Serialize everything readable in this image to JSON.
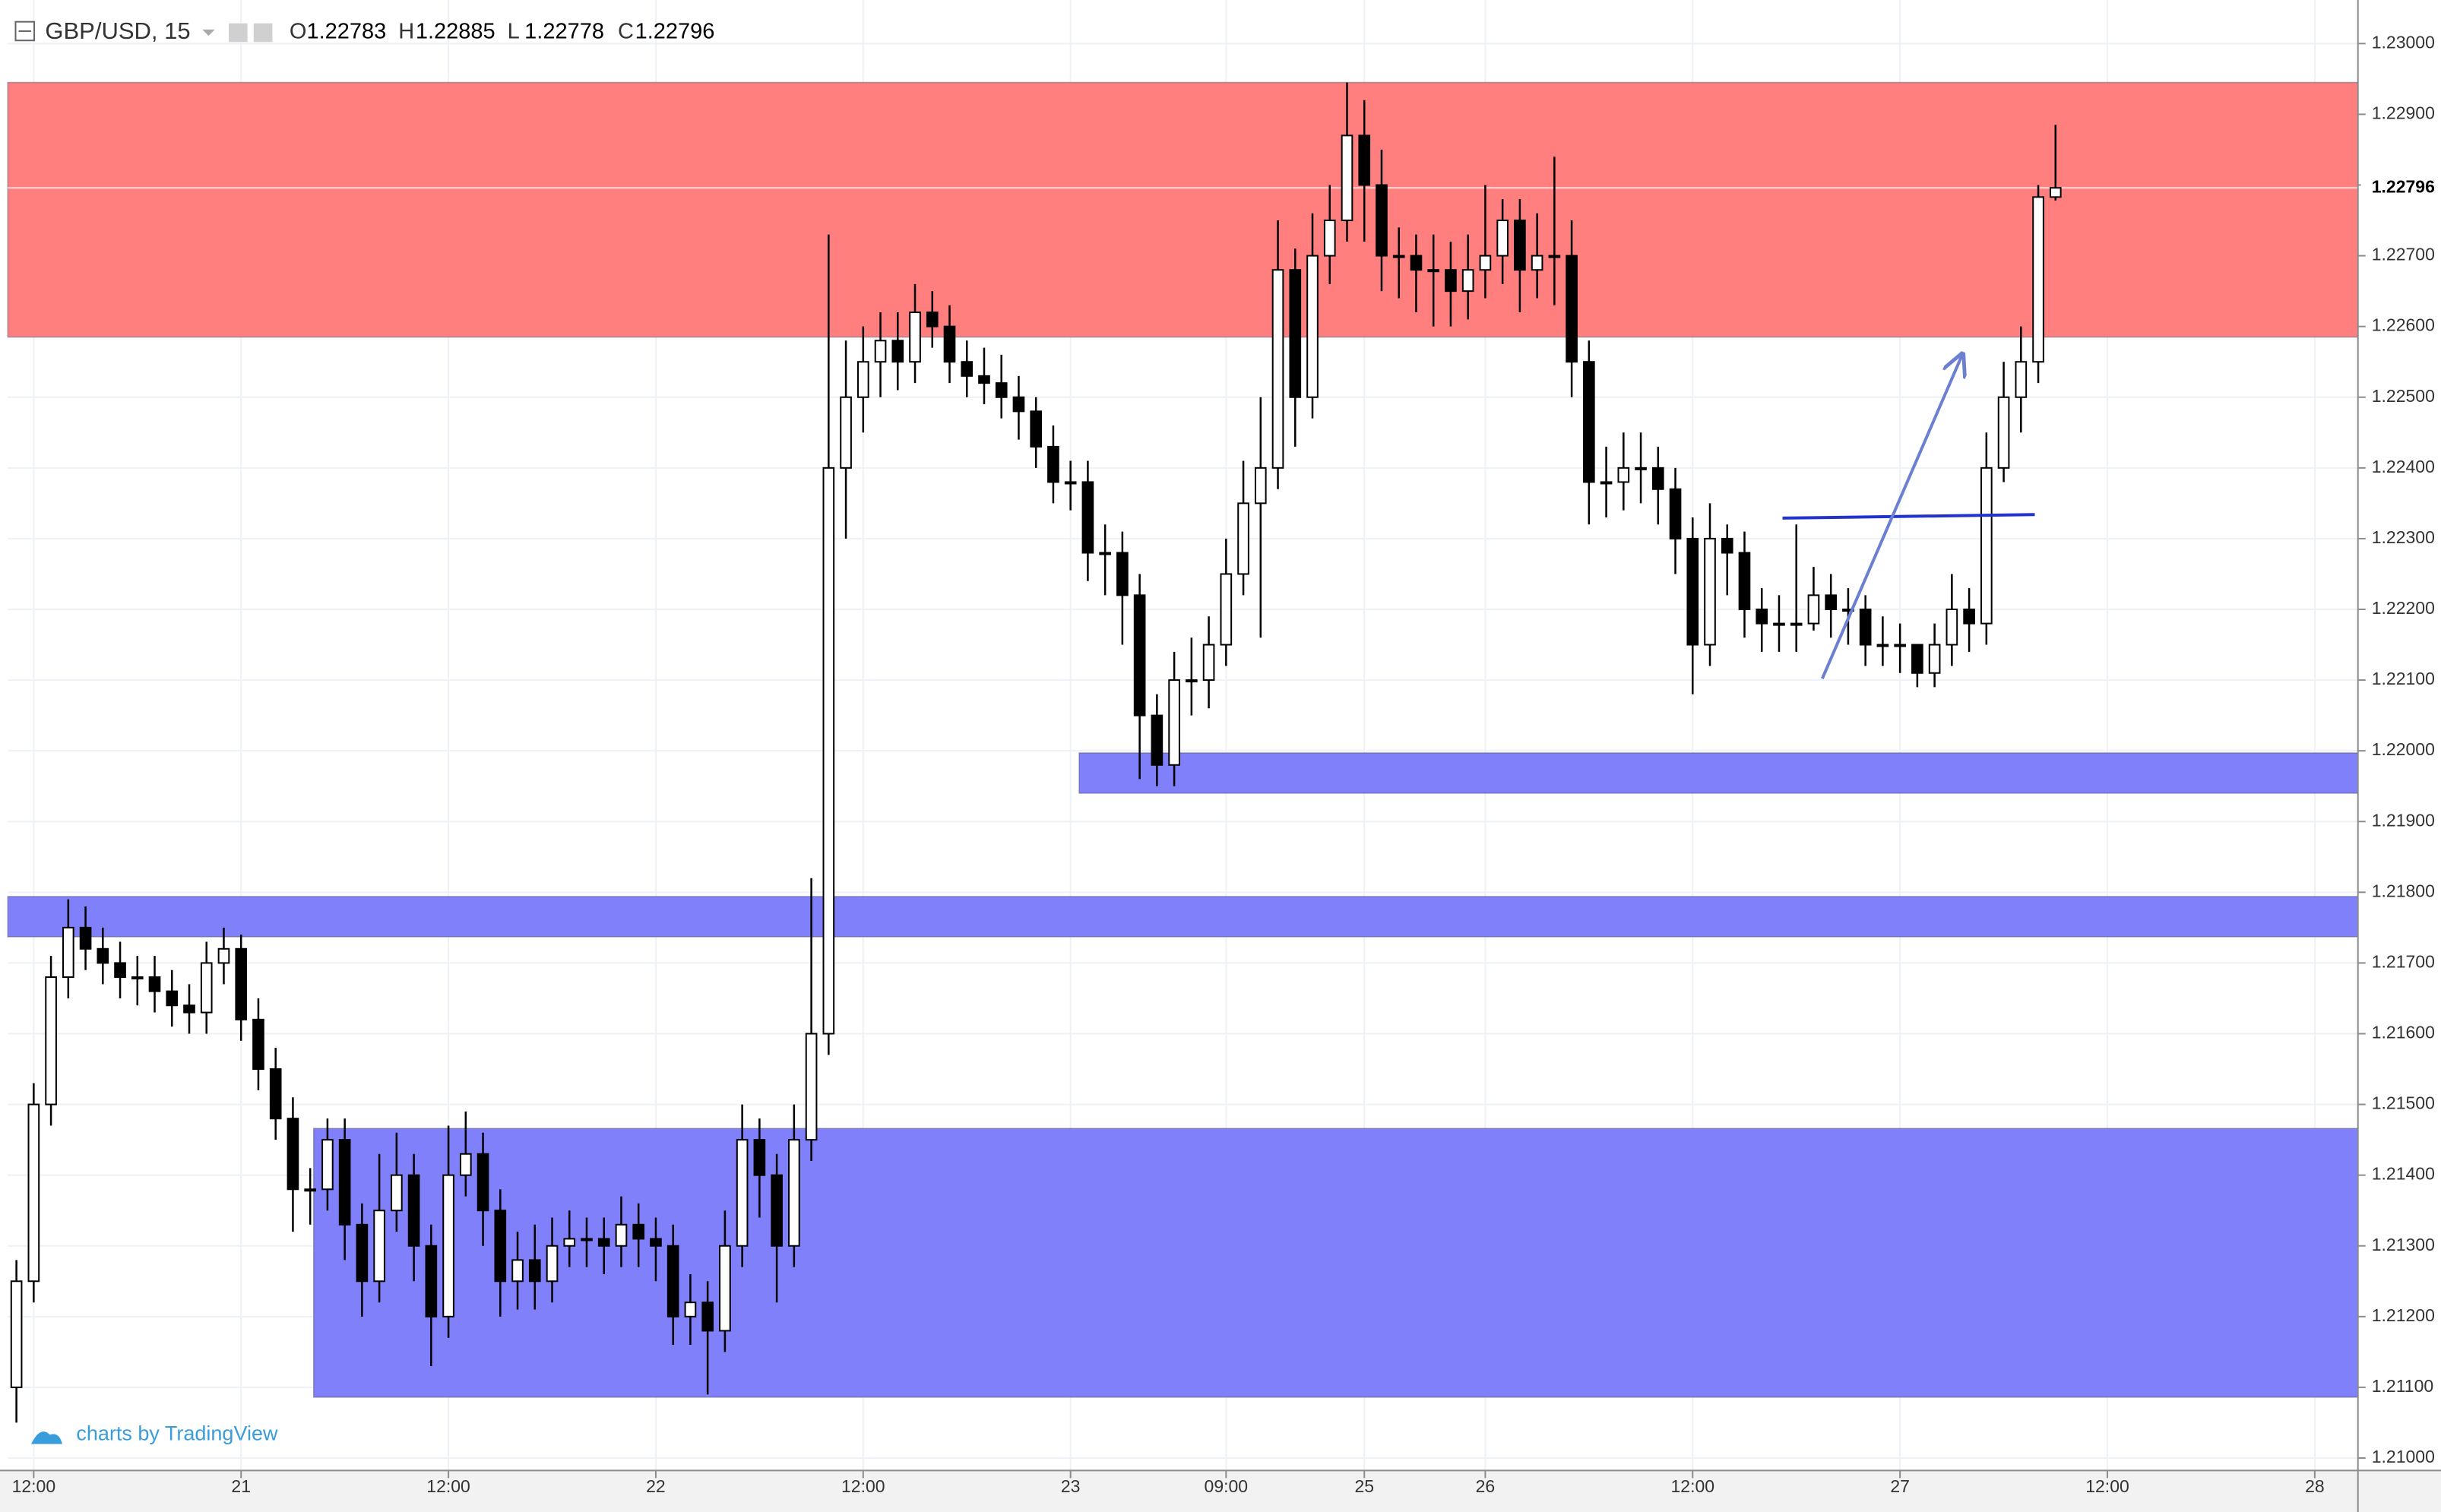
{
  "chart_data": {
    "type": "candlestick",
    "symbol": "GBP/USD, 15",
    "ohlc_labels": [
      "O",
      "H",
      "L",
      "C"
    ],
    "watermark": "charts by TradingView",
    "categories": [
      null,
      "12:00",
      null,
      null,
      null,
      null,
      null,
      null,
      null,
      null,
      null,
      null,
      null,
      "21",
      null,
      null,
      null,
      null,
      null,
      null,
      null,
      null,
      null,
      null,
      null,
      "12:00",
      null,
      null,
      null,
      null,
      null,
      null,
      null,
      null,
      null,
      null,
      null,
      "22",
      null,
      null,
      null,
      null,
      null,
      null,
      null,
      null,
      null,
      null,
      null,
      "12:00",
      null,
      null,
      null,
      null,
      null,
      null,
      null,
      null,
      null,
      null,
      null,
      "23",
      null,
      null,
      null,
      null,
      null,
      null,
      null,
      null,
      "09:00",
      null,
      null,
      null,
      null,
      null,
      null,
      null,
      "25",
      null,
      null,
      null,
      null,
      null,
      null,
      "26",
      null,
      null,
      null,
      null,
      null,
      null,
      null,
      null,
      null,
      null,
      null,
      "12:00",
      null,
      null,
      null,
      null,
      null,
      null,
      null,
      null,
      null,
      null,
      null,
      "27",
      null,
      null,
      null,
      null,
      null,
      null,
      null,
      null,
      null,
      null,
      null,
      "12:00",
      null,
      null,
      null,
      null,
      null,
      null,
      null,
      null,
      null,
      null,
      null,
      "28",
      null,
      null
    ],
    "ohlc": {
      "open": [
        1.211,
        1.2125,
        1.215,
        1.2168,
        1.2175,
        1.2172,
        1.217,
        1.2168,
        1.2168,
        1.2166,
        1.2164,
        1.2163,
        1.217,
        1.2172,
        1.2162,
        1.2155,
        1.2148,
        1.2138,
        1.2138,
        1.2145,
        1.2133,
        1.2125,
        1.2135,
        1.214,
        1.213,
        1.212,
        1.214,
        1.2143,
        1.2135,
        1.2125,
        1.2128,
        1.2125,
        1.213,
        1.2131,
        1.2131,
        1.213,
        1.2133,
        1.2131,
        1.213,
        1.212,
        1.2122,
        1.2118,
        1.213,
        1.2145,
        1.214,
        1.213,
        1.2145,
        1.216,
        1.224,
        1.225,
        1.2255,
        1.2258,
        1.2255,
        1.2262,
        1.226,
        1.2255,
        1.2253,
        1.2252,
        1.225,
        1.2248,
        1.2243,
        1.2238,
        1.2238,
        1.2228,
        1.2228,
        1.2222,
        1.2205,
        1.2198,
        1.221,
        1.221,
        1.2215,
        1.2225,
        1.2235,
        1.224,
        1.2268,
        1.225,
        1.227,
        1.2275,
        1.2287,
        1.228,
        1.227,
        1.227,
        1.2268,
        1.2268,
        1.2265,
        1.2268,
        1.227,
        1.2275,
        1.2268,
        1.227,
        1.227,
        1.2255,
        1.2238,
        1.2238,
        1.224,
        1.224,
        1.2237,
        1.223,
        1.2215,
        1.223,
        1.2228,
        1.222,
        1.2218,
        1.2218,
        1.2218,
        1.2222,
        1.222,
        1.222,
        1.2215,
        1.2215,
        1.2215,
        1.2211,
        1.2215,
        1.222,
        1.2218,
        1.224,
        1.225,
        1.2255,
        1.22783,
        null,
        null,
        null,
        null,
        null,
        null,
        null,
        null,
        null,
        null,
        null,
        null,
        null,
        null,
        null,
        null,
        null
      ],
      "high": [
        1.2128,
        1.2153,
        1.2171,
        1.2179,
        1.2178,
        1.2175,
        1.2173,
        1.2171,
        1.2171,
        1.2169,
        1.2167,
        1.2173,
        1.2175,
        1.2174,
        1.2165,
        1.2158,
        1.2151,
        1.2141,
        1.2148,
        1.2148,
        1.2136,
        1.2143,
        1.2146,
        1.2143,
        1.2133,
        1.2147,
        1.2149,
        1.2146,
        1.2138,
        1.2132,
        1.2133,
        1.2134,
        1.2135,
        1.2134,
        1.2134,
        1.2137,
        1.2136,
        1.2134,
        1.2133,
        1.2126,
        1.2125,
        1.2135,
        1.215,
        1.2148,
        1.2143,
        1.215,
        1.2182,
        1.2273,
        1.2258,
        1.226,
        1.2262,
        1.2262,
        1.2266,
        1.2265,
        1.2263,
        1.2258,
        1.2257,
        1.2256,
        1.2253,
        1.225,
        1.2246,
        1.2241,
        1.2241,
        1.2232,
        1.2231,
        1.2225,
        1.2208,
        1.2214,
        1.2216,
        1.2219,
        1.223,
        1.2241,
        1.225,
        1.2275,
        1.2271,
        1.2276,
        1.228,
        1.22945,
        1.2292,
        1.2285,
        1.2274,
        1.2273,
        1.2273,
        1.2272,
        1.2273,
        1.228,
        1.2278,
        1.2278,
        1.2276,
        1.2284,
        1.2275,
        1.2258,
        1.2243,
        1.2245,
        1.2245,
        1.2243,
        1.224,
        1.2233,
        1.2235,
        1.2232,
        1.2231,
        1.2223,
        1.2222,
        1.2232,
        1.2226,
        1.2225,
        1.2223,
        1.2222,
        1.2219,
        1.2218,
        1.2215,
        1.2218,
        1.2225,
        1.2223,
        1.2245,
        1.2255,
        1.226,
        1.228,
        1.22885,
        null,
        null,
        null,
        null,
        null,
        null,
        null,
        null,
        null,
        null,
        null,
        null,
        null,
        null,
        null,
        null,
        null
      ],
      "low": [
        1.2105,
        1.2122,
        1.2147,
        1.2165,
        1.2169,
        1.2167,
        1.2165,
        1.2164,
        1.2163,
        1.2161,
        1.216,
        1.216,
        1.2167,
        1.2159,
        1.2152,
        1.2145,
        1.2132,
        1.2133,
        1.2135,
        1.2128,
        1.212,
        1.2122,
        1.2132,
        1.2125,
        1.2113,
        1.2117,
        1.2137,
        1.213,
        1.212,
        1.2121,
        1.2121,
        1.2122,
        1.2127,
        1.2127,
        1.2126,
        1.2127,
        1.2127,
        1.2125,
        1.2116,
        1.2116,
        1.2109,
        1.2115,
        1.2127,
        1.2134,
        1.2122,
        1.2127,
        1.2142,
        1.2157,
        1.223,
        1.2245,
        1.225,
        1.2251,
        1.2252,
        1.2257,
        1.2252,
        1.225,
        1.2249,
        1.2247,
        1.2244,
        1.224,
        1.2235,
        1.2234,
        1.2224,
        1.2222,
        1.2215,
        1.2196,
        1.2195,
        1.2195,
        1.2205,
        1.2206,
        1.2212,
        1.2222,
        1.2216,
        1.2237,
        1.2243,
        1.2247,
        1.2266,
        1.2272,
        1.2272,
        1.2265,
        1.2264,
        1.2262,
        1.226,
        1.226,
        1.2261,
        1.2264,
        1.2266,
        1.2262,
        1.2264,
        1.2263,
        1.225,
        1.2232,
        1.2233,
        1.2234,
        1.2235,
        1.2232,
        1.2225,
        1.2208,
        1.2212,
        1.2222,
        1.2216,
        1.2214,
        1.2214,
        1.2214,
        1.2217,
        1.2216,
        1.2215,
        1.2212,
        1.2212,
        1.2211,
        1.2209,
        1.2209,
        1.2212,
        1.2214,
        1.2215,
        1.2238,
        1.2245,
        1.2252,
        1.22778,
        null,
        null,
        null,
        null,
        null,
        null,
        null,
        null,
        null,
        null,
        null,
        null,
        null,
        null,
        null,
        null,
        null
      ],
      "close": [
        1.2125,
        1.215,
        1.2168,
        1.2175,
        1.2172,
        1.217,
        1.2168,
        1.2168,
        1.2166,
        1.2164,
        1.2163,
        1.217,
        1.2172,
        1.2162,
        1.2155,
        1.2148,
        1.2138,
        1.2138,
        1.2145,
        1.2133,
        1.2125,
        1.2135,
        1.214,
        1.213,
        1.212,
        1.214,
        1.2143,
        1.2135,
        1.2125,
        1.2128,
        1.2125,
        1.213,
        1.2131,
        1.2131,
        1.213,
        1.2133,
        1.2131,
        1.213,
        1.212,
        1.2122,
        1.2118,
        1.213,
        1.2145,
        1.214,
        1.213,
        1.2145,
        1.216,
        1.224,
        1.225,
        1.2255,
        1.2258,
        1.2255,
        1.2262,
        1.226,
        1.2255,
        1.2253,
        1.2252,
        1.225,
        1.2248,
        1.2243,
        1.2238,
        1.2238,
        1.2228,
        1.2228,
        1.2222,
        1.2205,
        1.2198,
        1.221,
        1.221,
        1.2215,
        1.2225,
        1.2235,
        1.224,
        1.2268,
        1.225,
        1.227,
        1.2275,
        1.2287,
        1.228,
        1.227,
        1.227,
        1.2268,
        1.2268,
        1.2265,
        1.2268,
        1.227,
        1.2275,
        1.2268,
        1.227,
        1.227,
        1.2255,
        1.2238,
        1.2238,
        1.224,
        1.224,
        1.2237,
        1.223,
        1.2215,
        1.223,
        1.2228,
        1.222,
        1.2218,
        1.2218,
        1.2218,
        1.2222,
        1.222,
        1.222,
        1.2215,
        1.2215,
        1.2215,
        1.2211,
        1.2215,
        1.222,
        1.2218,
        1.224,
        1.225,
        1.2255,
        1.22783,
        1.22796,
        null,
        null,
        null,
        null,
        null,
        null,
        null,
        null,
        null,
        null,
        null,
        null,
        null,
        null,
        null,
        null,
        null
      ]
    },
    "up_color": "#ffffff",
    "down_color": "#000000",
    "zones": [
      {
        "low": 1.22585,
        "high": 1.22945,
        "from": 0,
        "color": "#ff7f7f"
      },
      {
        "low": 1.2194,
        "high": 1.21997,
        "from": 62,
        "color": "#8080fa"
      },
      {
        "low": 1.21737,
        "high": 1.21794,
        "from": 0,
        "color": "#8080fa"
      },
      {
        "low": 1.21086,
        "high": 1.21466,
        "from": 17.7,
        "color": "#8080fa"
      }
    ],
    "lines": [
      {
        "points": [
          [
            102.7,
            1.22329
          ],
          [
            117.3,
            1.22334
          ]
        ],
        "color": "#2233cc",
        "arrow": false
      },
      {
        "points": [
          [
            105.0,
            1.22102
          ],
          [
            113.1,
            1.2256
          ]
        ],
        "color": "#6b80d0",
        "arrow": true
      }
    ],
    "ylim": [
      1.21,
      1.23
    ],
    "yticks": [
      {
        "value": 1.21,
        "label": "1.21000"
      },
      {
        "value": 1.211,
        "label": "1.21100"
      },
      {
        "value": 1.212,
        "label": "1.21200"
      },
      {
        "value": 1.213,
        "label": "1.21300"
      },
      {
        "value": 1.214,
        "label": "1.21400"
      },
      {
        "value": 1.215,
        "label": "1.21500"
      },
      {
        "value": 1.216,
        "label": "1.21600"
      },
      {
        "value": 1.217,
        "label": "1.21700"
      },
      {
        "value": 1.218,
        "label": "1.21800"
      },
      {
        "value": 1.219,
        "label": "1.21900"
      },
      {
        "value": 1.22,
        "label": "1.22000"
      },
      {
        "value": 1.221,
        "label": "1.22100"
      },
      {
        "value": 1.222,
        "label": "1.22200"
      },
      {
        "value": 1.223,
        "label": "1.22300"
      },
      {
        "value": 1.224,
        "label": "1.22400"
      },
      {
        "value": 1.225,
        "label": "1.22500"
      },
      {
        "value": 1.226,
        "label": "1.22600"
      },
      {
        "value": 1.227,
        "label": "1.22700"
      },
      {
        "value": 1.228,
        "label": "1.22800"
      },
      {
        "value": 1.229,
        "label": "1.22900"
      },
      {
        "value": 1.23,
        "label": "1.23000"
      }
    ],
    "grid": true
  }
}
